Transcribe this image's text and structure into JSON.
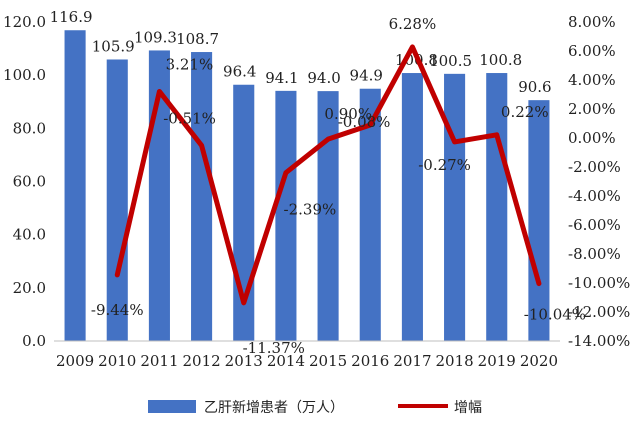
{
  "chart_data": {
    "type": "bar+line",
    "categories": [
      "2009",
      "2010",
      "2011",
      "2012",
      "2013",
      "2014",
      "2015",
      "2016",
      "2017",
      "2018",
      "2019",
      "2020"
    ],
    "series": [
      {
        "name": "乙肝新增患者（万人）",
        "type": "bar",
        "axis": "left",
        "color": "#4472C4",
        "values": [
          116.9,
          105.9,
          109.3,
          108.7,
          96.4,
          94.1,
          94.0,
          94.9,
          100.8,
          100.5,
          100.8,
          90.6
        ],
        "labels": [
          "116.9",
          "105.9",
          "109.3",
          "108.7",
          "96.4",
          "94.1",
          "94.0",
          "94.9",
          "100.8",
          "100.5",
          "100.8",
          "90.6"
        ]
      },
      {
        "name": "增幅",
        "type": "line",
        "axis": "right",
        "color": "#C00000",
        "values": [
          null,
          -9.44,
          3.21,
          -0.51,
          -11.37,
          -2.39,
          -0.08,
          0.9,
          6.28,
          -0.27,
          0.22,
          -10.04
        ],
        "labels": [
          "",
          "-9.44%",
          "3.21%",
          "-0.51%",
          "-11.37%",
          "-2.39%",
          "-0.08%",
          "0.90%",
          "6.28%",
          "-0.27%",
          "0.22%",
          "-10.04%"
        ]
      }
    ],
    "y_left": {
      "min": 0,
      "max": 120,
      "step": 20,
      "tick_labels": [
        "0.0",
        "20.0",
        "40.0",
        "60.0",
        "80.0",
        "100.0",
        "120.0"
      ]
    },
    "y_right": {
      "min": -14,
      "max": 8,
      "step": 2,
      "tick_labels": [
        "-14.00%",
        "-12.00%",
        "-10.00%",
        "-8.00%",
        "-6.00%",
        "-4.00%",
        "-2.00%",
        "0.00%",
        "2.00%",
        "4.00%",
        "6.00%",
        "8.00%"
      ]
    },
    "grid": false,
    "legend_position": "bottom"
  }
}
